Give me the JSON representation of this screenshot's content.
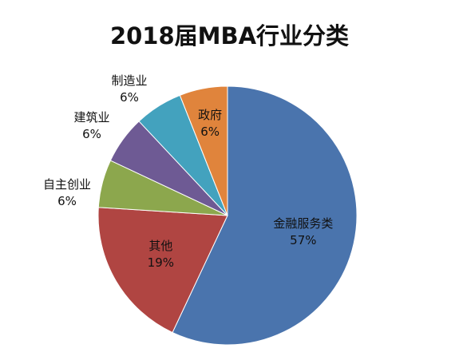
{
  "chart_data": {
    "type": "pie",
    "title": "2018届MBA行业分类",
    "categories": [
      "金融服务类",
      "其他",
      "自主创业",
      "建筑业",
      "制造业",
      "政府"
    ],
    "values": [
      57,
      19,
      6,
      6,
      6,
      6
    ],
    "value_labels": [
      "57%",
      "19%",
      "6%",
      "6%",
      "6%",
      "6%"
    ],
    "colors": [
      "#4a74ad",
      "#b04542",
      "#8ca74d",
      "#6e5a94",
      "#43a2be",
      "#e0843c"
    ],
    "start_angle": "12 o'clock",
    "direction": "clockwise",
    "legend": "none"
  }
}
